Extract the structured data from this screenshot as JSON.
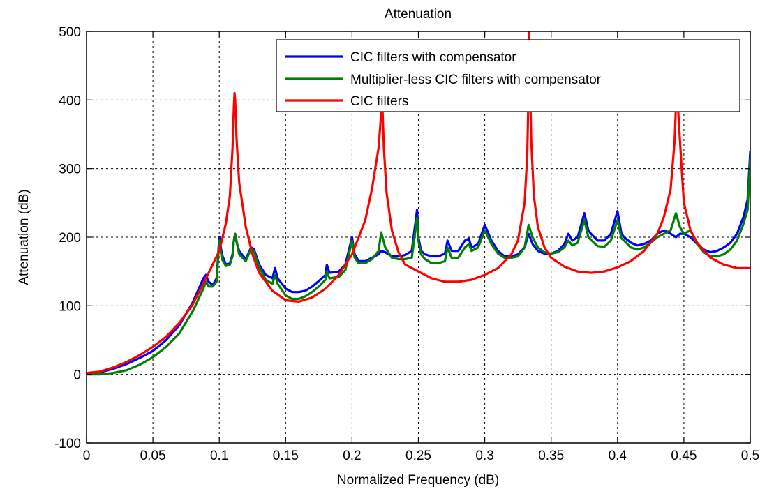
{
  "chart_data": {
    "type": "line",
    "title": "Attenuation",
    "xlabel": "Normalized Frequency (dB)",
    "ylabel": "Attenuation (dB)",
    "xlim": [
      0,
      0.5
    ],
    "ylim": [
      -100,
      500
    ],
    "xticks": [
      0,
      0.05,
      0.1,
      0.15,
      0.2,
      0.25,
      0.3,
      0.35,
      0.4,
      0.45,
      0.5
    ],
    "xtick_labels": [
      "0",
      "0.05",
      "0.1",
      "0.15",
      "0.2",
      "0.25",
      "0.3",
      "0.35",
      "0.4",
      "0.45",
      "0.5"
    ],
    "yticks": [
      -100,
      0,
      100,
      200,
      300,
      400,
      500
    ],
    "ytick_labels": [
      "-100",
      "0",
      "100",
      "200",
      "300",
      "400",
      "500"
    ],
    "grid": true,
    "legend_position": "top-right",
    "series": [
      {
        "name": "CIC filters with compensator",
        "color": "#0000ff",
        "x": [
          0,
          0.01,
          0.02,
          0.03,
          0.04,
          0.05,
          0.06,
          0.07,
          0.08,
          0.088,
          0.09,
          0.092,
          0.095,
          0.098,
          0.1,
          0.102,
          0.105,
          0.108,
          0.11,
          0.111,
          0.112,
          0.115,
          0.12,
          0.124,
          0.126,
          0.13,
          0.135,
          0.14,
          0.142,
          0.144,
          0.15,
          0.155,
          0.16,
          0.165,
          0.17,
          0.175,
          0.18,
          0.181,
          0.183,
          0.19,
          0.195,
          0.2,
          0.202,
          0.205,
          0.21,
          0.215,
          0.22,
          0.222,
          0.225,
          0.23,
          0.235,
          0.24,
          0.245,
          0.249,
          0.25,
          0.252,
          0.255,
          0.26,
          0.265,
          0.27,
          0.272,
          0.275,
          0.28,
          0.285,
          0.288,
          0.29,
          0.295,
          0.3,
          0.305,
          0.31,
          0.315,
          0.32,
          0.325,
          0.33,
          0.333,
          0.336,
          0.34,
          0.345,
          0.35,
          0.355,
          0.36,
          0.363,
          0.366,
          0.37,
          0.375,
          0.378,
          0.38,
          0.385,
          0.39,
          0.395,
          0.4,
          0.403,
          0.405,
          0.41,
          0.415,
          0.42,
          0.425,
          0.43,
          0.435,
          0.44,
          0.444,
          0.447,
          0.45,
          0.455,
          0.46,
          0.465,
          0.47,
          0.475,
          0.48,
          0.485,
          0.49,
          0.495,
          0.498,
          0.5
        ],
        "y": [
          2,
          3,
          8,
          15,
          24,
          34,
          50,
          72,
          105,
          140,
          145,
          135,
          130,
          140,
          200,
          175,
          160,
          162,
          175,
          195,
          200,
          180,
          168,
          185,
          183,
          160,
          145,
          140,
          155,
          140,
          125,
          120,
          120,
          122,
          128,
          136,
          145,
          160,
          148,
          150,
          160,
          200,
          175,
          165,
          165,
          170,
          175,
          180,
          178,
          172,
          172,
          174,
          180,
          240,
          200,
          180,
          175,
          172,
          172,
          176,
          195,
          180,
          180,
          195,
          198,
          185,
          190,
          218,
          195,
          180,
          172,
          172,
          175,
          185,
          205,
          190,
          180,
          176,
          176,
          180,
          190,
          205,
          195,
          200,
          235,
          210,
          205,
          195,
          195,
          205,
          238,
          205,
          200,
          192,
          188,
          190,
          195,
          205,
          210,
          205,
          200,
          205,
          205,
          200,
          190,
          182,
          178,
          180,
          185,
          192,
          205,
          230,
          255,
          325
        ]
      },
      {
        "name": "Multiplier-less CIC filters with compensator",
        "color": "#008000",
        "x": [
          0,
          0.01,
          0.02,
          0.03,
          0.04,
          0.05,
          0.06,
          0.07,
          0.08,
          0.088,
          0.09,
          0.092,
          0.095,
          0.098,
          0.1,
          0.102,
          0.105,
          0.108,
          0.11,
          0.111,
          0.112,
          0.115,
          0.12,
          0.124,
          0.126,
          0.13,
          0.135,
          0.14,
          0.142,
          0.144,
          0.15,
          0.155,
          0.16,
          0.165,
          0.17,
          0.175,
          0.18,
          0.181,
          0.183,
          0.19,
          0.195,
          0.2,
          0.202,
          0.205,
          0.21,
          0.215,
          0.22,
          0.222,
          0.225,
          0.23,
          0.235,
          0.24,
          0.245,
          0.249,
          0.25,
          0.252,
          0.255,
          0.26,
          0.265,
          0.27,
          0.272,
          0.275,
          0.28,
          0.285,
          0.288,
          0.29,
          0.295,
          0.3,
          0.305,
          0.31,
          0.315,
          0.32,
          0.325,
          0.33,
          0.333,
          0.336,
          0.34,
          0.345,
          0.35,
          0.355,
          0.36,
          0.363,
          0.366,
          0.37,
          0.375,
          0.378,
          0.38,
          0.385,
          0.39,
          0.395,
          0.4,
          0.403,
          0.405,
          0.41,
          0.415,
          0.42,
          0.425,
          0.43,
          0.435,
          0.44,
          0.444,
          0.447,
          0.45,
          0.455,
          0.46,
          0.465,
          0.47,
          0.475,
          0.48,
          0.485,
          0.49,
          0.495,
          0.498,
          0.5
        ],
        "y": [
          0,
          0,
          2,
          6,
          14,
          25,
          40,
          60,
          92,
          125,
          135,
          128,
          128,
          135,
          195,
          168,
          158,
          160,
          172,
          195,
          205,
          175,
          165,
          183,
          180,
          156,
          138,
          132,
          145,
          132,
          115,
          110,
          110,
          114,
          120,
          128,
          138,
          150,
          140,
          142,
          152,
          195,
          170,
          162,
          162,
          168,
          180,
          207,
          185,
          170,
          168,
          168,
          170,
          228,
          195,
          175,
          168,
          162,
          162,
          165,
          185,
          170,
          170,
          185,
          190,
          180,
          185,
          210,
          190,
          176,
          170,
          170,
          172,
          185,
          218,
          200,
          185,
          178,
          176,
          178,
          185,
          195,
          188,
          192,
          225,
          200,
          196,
          187,
          186,
          195,
          225,
          198,
          195,
          185,
          182,
          185,
          192,
          200,
          205,
          210,
          235,
          215,
          205,
          210,
          190,
          178,
          172,
          172,
          175,
          182,
          195,
          220,
          240,
          315
        ]
      },
      {
        "name": "CIC filters",
        "color": "#ff0000",
        "x": [
          0,
          0.01,
          0.02,
          0.03,
          0.04,
          0.05,
          0.06,
          0.07,
          0.08,
          0.09,
          0.095,
          0.1,
          0.105,
          0.108,
          0.11,
          0.111,
          0.1115,
          0.112,
          0.113,
          0.115,
          0.12,
          0.125,
          0.13,
          0.14,
          0.15,
          0.16,
          0.17,
          0.18,
          0.19,
          0.2,
          0.21,
          0.215,
          0.22,
          0.222,
          0.2225,
          0.223,
          0.224,
          0.226,
          0.23,
          0.235,
          0.24,
          0.25,
          0.26,
          0.27,
          0.28,
          0.29,
          0.3,
          0.31,
          0.32,
          0.325,
          0.33,
          0.332,
          0.333,
          0.3335,
          0.334,
          0.335,
          0.337,
          0.34,
          0.345,
          0.35,
          0.36,
          0.37,
          0.38,
          0.39,
          0.4,
          0.41,
          0.42,
          0.43,
          0.435,
          0.44,
          0.443,
          0.444,
          0.445,
          0.446,
          0.448,
          0.45,
          0.455,
          0.46,
          0.47,
          0.48,
          0.49,
          0.5
        ],
        "y": [
          2,
          4,
          10,
          18,
          28,
          40,
          55,
          75,
          102,
          140,
          160,
          180,
          220,
          260,
          330,
          390,
          410,
          400,
          345,
          280,
          215,
          175,
          148,
          122,
          108,
          106,
          112,
          125,
          145,
          175,
          225,
          270,
          330,
          380,
          410,
          385,
          330,
          265,
          210,
          178,
          160,
          150,
          140,
          135,
          135,
          138,
          145,
          155,
          175,
          195,
          250,
          320,
          420,
          500,
          430,
          340,
          260,
          215,
          185,
          170,
          157,
          150,
          148,
          150,
          156,
          165,
          180,
          205,
          230,
          270,
          340,
          390,
          410,
          375,
          310,
          250,
          210,
          192,
          170,
          160,
          155,
          155
        ]
      }
    ]
  }
}
